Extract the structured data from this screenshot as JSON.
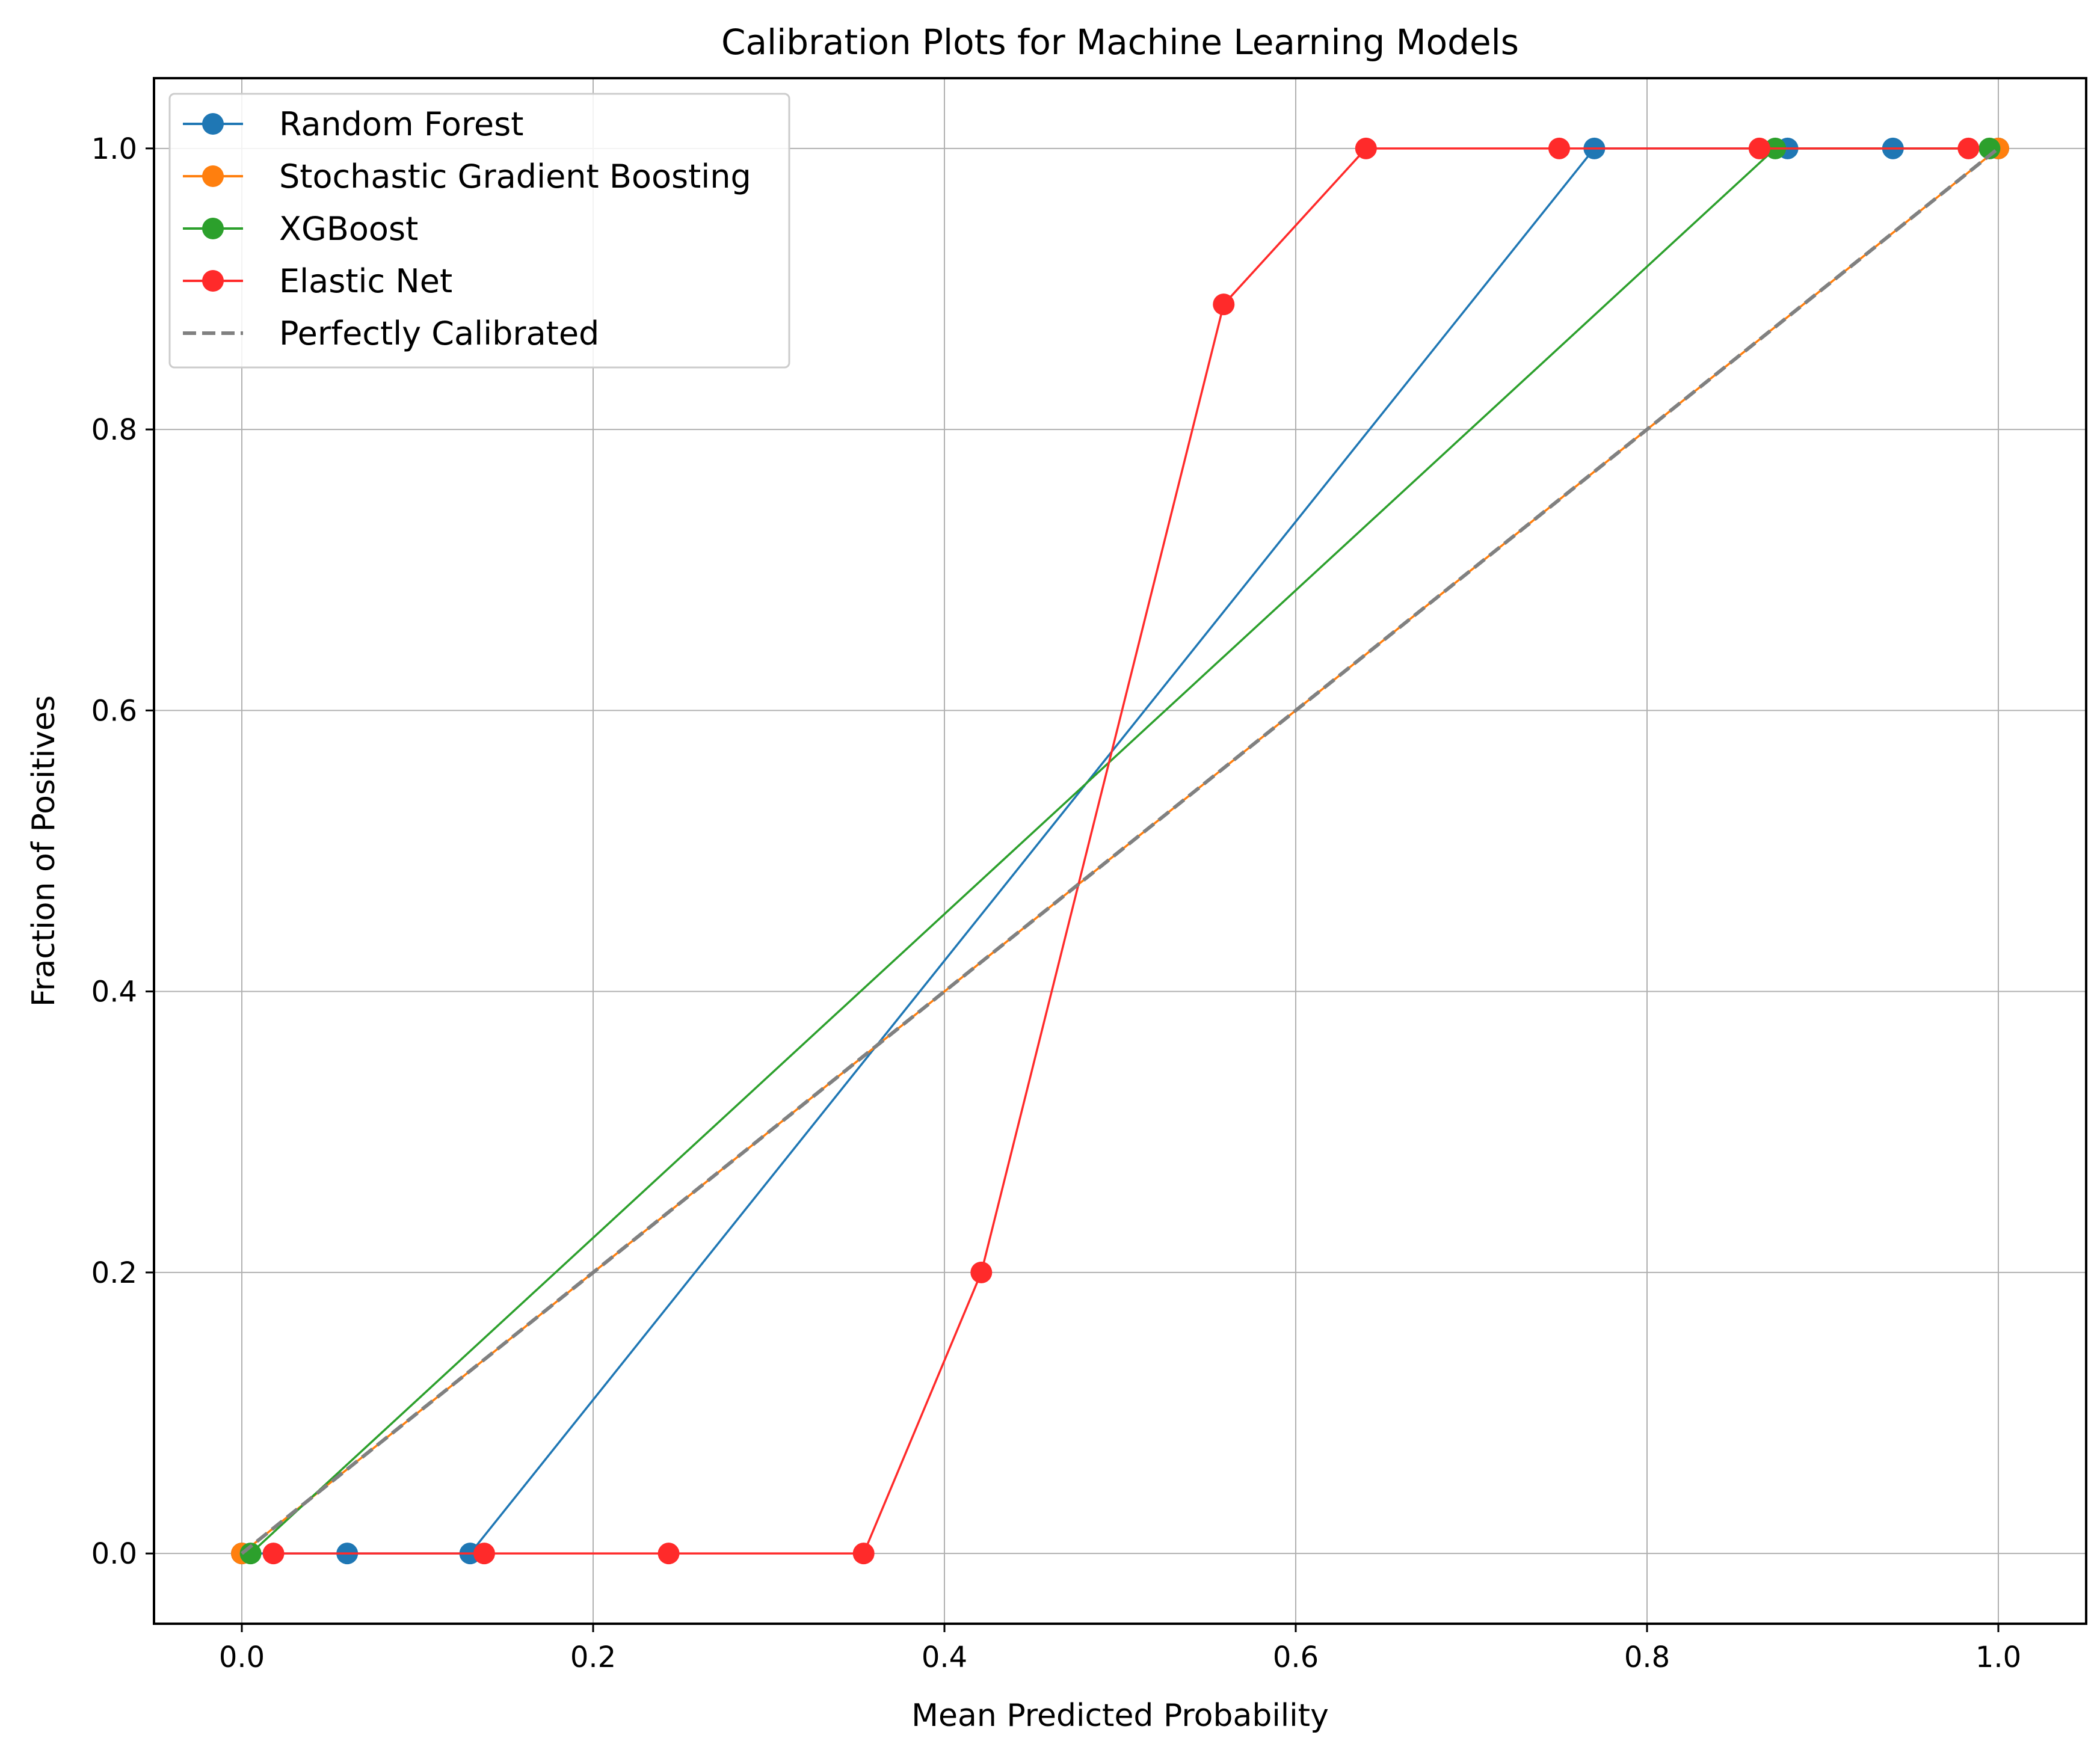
{
  "chart_data": {
    "type": "line",
    "title": "Calibration Plots for Machine Learning Models",
    "xlabel": "Mean Predicted Probability",
    "ylabel": "Fraction of Positives",
    "xlim": [
      -0.05,
      1.05
    ],
    "ylim": [
      -0.05,
      1.05
    ],
    "xticks": [
      0.0,
      0.2,
      0.4,
      0.6,
      0.8,
      1.0
    ],
    "xtick_labels": [
      "0.0",
      "0.2",
      "0.4",
      "0.6",
      "0.8",
      "1.0"
    ],
    "yticks": [
      0.0,
      0.2,
      0.4,
      0.6,
      0.8,
      1.0
    ],
    "ytick_labels": [
      "0.0",
      "0.2",
      "0.4",
      "0.6",
      "0.8",
      "1.0"
    ],
    "grid": true,
    "legend_position": "top-left",
    "series": [
      {
        "name": "Random Forest",
        "color": "#1f77b4",
        "marker": "circle",
        "x": [
          0.0,
          0.06,
          0.13,
          0.77,
          0.88,
          0.94,
          1.0
        ],
        "y": [
          0.0,
          0.0,
          0.0,
          1.0,
          1.0,
          1.0,
          1.0
        ]
      },
      {
        "name": "Stochastic Gradient Boosting",
        "color": "#ff7f0e",
        "marker": "circle",
        "x": [
          0.0,
          1.0
        ],
        "y": [
          0.0,
          1.0
        ]
      },
      {
        "name": "XGBoost",
        "color": "#2ca02c",
        "marker": "circle",
        "x": [
          0.005,
          0.873,
          0.995
        ],
        "y": [
          0.0,
          1.0,
          1.0
        ]
      },
      {
        "name": "Elastic Net",
        "color": "#ff2a2a",
        "marker": "circle",
        "x": [
          0.018,
          0.138,
          0.243,
          0.354,
          0.421,
          0.559,
          0.64,
          0.75,
          0.864,
          0.983
        ],
        "y": [
          0.0,
          0.0,
          0.0,
          0.0,
          0.2,
          0.889,
          1.0,
          1.0,
          1.0,
          1.0
        ]
      },
      {
        "name": "Perfectly Calibrated",
        "color": "#808080",
        "style": "dashed",
        "x": [
          0.0,
          1.0
        ],
        "y": [
          0.0,
          1.0
        ]
      }
    ]
  }
}
